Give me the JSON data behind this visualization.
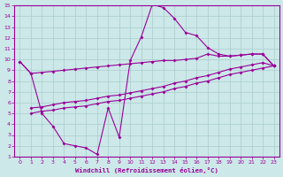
{
  "xlabel": "Windchill (Refroidissement éolien,°C)",
  "background_color": "#cce8e8",
  "grid_color": "#aacccc",
  "line_color": "#990099",
  "xlim": [
    -0.5,
    23.5
  ],
  "ylim": [
    1,
    15
  ],
  "xticks": [
    0,
    1,
    2,
    3,
    4,
    5,
    6,
    7,
    8,
    9,
    10,
    11,
    12,
    13,
    14,
    15,
    16,
    17,
    18,
    19,
    20,
    21,
    22,
    23
  ],
  "yticks": [
    1,
    2,
    3,
    4,
    5,
    6,
    7,
    8,
    9,
    10,
    11,
    12,
    13,
    14,
    15
  ],
  "wavy_x": [
    0,
    1,
    2,
    3,
    4,
    5,
    6,
    7,
    8,
    9,
    10,
    11,
    12,
    13,
    14,
    15,
    16,
    17,
    18,
    19,
    20,
    21,
    22,
    23
  ],
  "wavy_y": [
    9.8,
    8.7,
    5.0,
    3.8,
    2.2,
    2.0,
    1.8,
    1.2,
    5.5,
    2.8,
    9.9,
    12.1,
    15.1,
    14.8,
    13.8,
    12.5,
    12.2,
    11.1,
    10.5,
    10.3,
    10.4,
    10.5,
    10.5,
    9.4
  ],
  "upper_x": [
    0,
    1,
    2,
    3,
    4,
    5,
    6,
    7,
    8,
    9,
    10,
    11,
    12,
    13,
    14,
    15,
    16,
    17,
    18,
    19,
    20,
    21,
    22,
    23
  ],
  "upper_y": [
    9.8,
    8.7,
    8.8,
    8.9,
    9.0,
    9.1,
    9.2,
    9.3,
    9.4,
    9.5,
    9.6,
    9.7,
    9.8,
    9.9,
    9.9,
    10.0,
    10.1,
    10.5,
    10.3,
    10.3,
    10.4,
    10.5,
    10.5,
    9.4
  ],
  "lower1_x": [
    1,
    2,
    3,
    4,
    5,
    6,
    7,
    8,
    9,
    10,
    11,
    12,
    13,
    14,
    15,
    16,
    17,
    18,
    19,
    20,
    21,
    22,
    23
  ],
  "lower1_y": [
    5.0,
    5.2,
    5.3,
    5.5,
    5.6,
    5.7,
    5.9,
    6.1,
    6.2,
    6.4,
    6.6,
    6.8,
    7.0,
    7.3,
    7.5,
    7.8,
    8.0,
    8.3,
    8.6,
    8.8,
    9.0,
    9.2,
    9.4
  ],
  "lower2_x": [
    1,
    2,
    3,
    4,
    5,
    6,
    7,
    8,
    9,
    10,
    11,
    12,
    13,
    14,
    15,
    16,
    17,
    18,
    19,
    20,
    21,
    22,
    23
  ],
  "lower2_y": [
    5.5,
    5.6,
    5.8,
    6.0,
    6.1,
    6.2,
    6.4,
    6.6,
    6.7,
    6.9,
    7.1,
    7.3,
    7.5,
    7.8,
    8.0,
    8.3,
    8.5,
    8.8,
    9.1,
    9.3,
    9.5,
    9.7,
    9.4
  ]
}
